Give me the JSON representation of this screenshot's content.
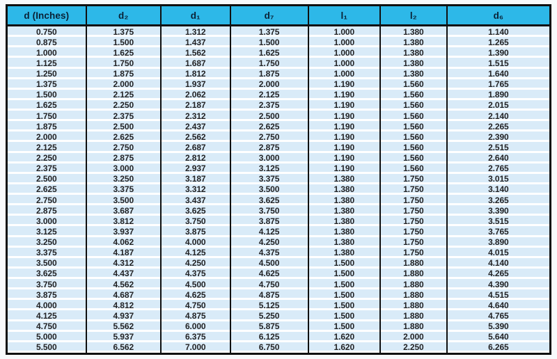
{
  "colors": {
    "header_bg": "#2db8e8",
    "header_text": "#0a2135",
    "row_band": "#d9ebf8",
    "row_separator": "#ffffff",
    "grid_line": "#101010",
    "body_text": "#232325"
  },
  "chart_data": {
    "type": "table",
    "columns": [
      "d (Inches)",
      "d₂",
      "d₁",
      "d₇",
      "l₁",
      "l₂",
      "d₆"
    ],
    "rows": [
      [
        "0.750",
        "1.375",
        "1.312",
        "1.375",
        "1.000",
        "1.380",
        "1.140"
      ],
      [
        "0.875",
        "1.500",
        "1.437",
        "1.500",
        "1.000",
        "1.380",
        "1.265"
      ],
      [
        "1.000",
        "1.625",
        "1.562",
        "1.625",
        "1.000",
        "1.380",
        "1.390"
      ],
      [
        "1.125",
        "1.750",
        "1.687",
        "1.750",
        "1.000",
        "1.380",
        "1.515"
      ],
      [
        "1.250",
        "1.875",
        "1.812",
        "1.875",
        "1.000",
        "1.380",
        "1.640"
      ],
      [
        "1.375",
        "2.000",
        "1.937",
        "2.000",
        "1.190",
        "1.560",
        "1.765"
      ],
      [
        "1.500",
        "2.125",
        "2.062",
        "2.125",
        "1.190",
        "1.560",
        "1.890"
      ],
      [
        "1.625",
        "2.250",
        "2.187",
        "2.375",
        "1.190",
        "1.560",
        "2.015"
      ],
      [
        "1.750",
        "2.375",
        "2.312",
        "2.500",
        "1.190",
        "1.560",
        "2.140"
      ],
      [
        "1.875",
        "2.500",
        "2.437",
        "2.625",
        "1.190",
        "1.560",
        "2.265"
      ],
      [
        "2.000",
        "2.625",
        "2.562",
        "2.750",
        "1.190",
        "1.560",
        "2.390"
      ],
      [
        "2.125",
        "2.750",
        "2.687",
        "2.875",
        "1.190",
        "1.560",
        "2.515"
      ],
      [
        "2.250",
        "2.875",
        "2.812",
        "3.000",
        "1.190",
        "1.560",
        "2.640"
      ],
      [
        "2.375",
        "3.000",
        "2.937",
        "3.125",
        "1.190",
        "1.560",
        "2.765"
      ],
      [
        "2.500",
        "3.250",
        "3.187",
        "3.375",
        "1.380",
        "1.750",
        "3.015"
      ],
      [
        "2.625",
        "3.375",
        "3.312",
        "3.500",
        "1.380",
        "1.750",
        "3.140"
      ],
      [
        "2.750",
        "3.500",
        "3.437",
        "3.625",
        "1.380",
        "1.750",
        "3.265"
      ],
      [
        "2.875",
        "3.687",
        "3.625",
        "3.750",
        "1.380",
        "1.750",
        "3.390"
      ],
      [
        "3.000",
        "3.812",
        "3.750",
        "3.875",
        "1.380",
        "1.750",
        "3.515"
      ],
      [
        "3.125",
        "3.937",
        "3.875",
        "4.125",
        "1.380",
        "1.750",
        "3.765"
      ],
      [
        "3.250",
        "4.062",
        "4.000",
        "4.250",
        "1.380",
        "1.750",
        "3.890"
      ],
      [
        "3.375",
        "4.187",
        "4.125",
        "4.375",
        "1.380",
        "1.750",
        "4.015"
      ],
      [
        "3.500",
        "4.312",
        "4.250",
        "4.500",
        "1.500",
        "1.880",
        "4.140"
      ],
      [
        "3.625",
        "4.437",
        "4.375",
        "4.625",
        "1.500",
        "1.880",
        "4.265"
      ],
      [
        "3.750",
        "4.562",
        "4.500",
        "4.750",
        "1.500",
        "1.880",
        "4.390"
      ],
      [
        "3.875",
        "4.687",
        "4.625",
        "4.875",
        "1.500",
        "1.880",
        "4.515"
      ],
      [
        "4.000",
        "4.812",
        "4.750",
        "5.125",
        "1.500",
        "1.880",
        "4.640"
      ],
      [
        "4.125",
        "4.937",
        "4.875",
        "5.250",
        "1.500",
        "1.880",
        "4.765"
      ],
      [
        "4.750",
        "5.562",
        "6.000",
        "5.875",
        "1.500",
        "1.880",
        "5.390"
      ],
      [
        "5.000",
        "5.937",
        "6.375",
        "6.125",
        "1.620",
        "2.000",
        "5.640"
      ],
      [
        "5.500",
        "6.562",
        "7.000",
        "6.750",
        "1.620",
        "2.250",
        "6.265"
      ]
    ]
  }
}
